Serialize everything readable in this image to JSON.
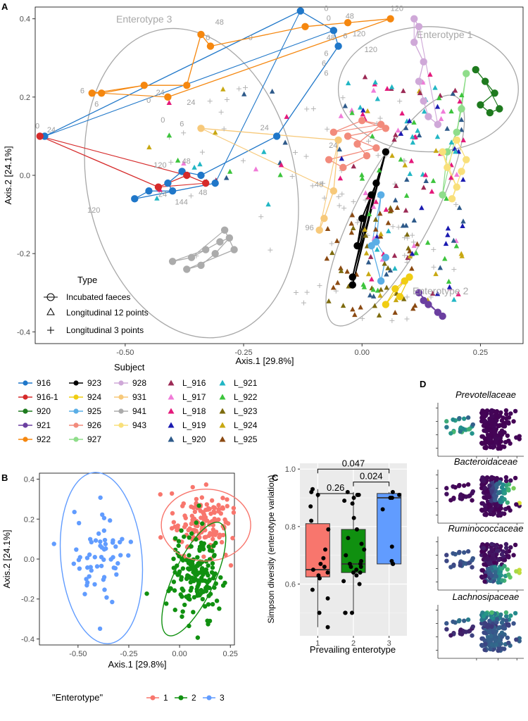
{
  "panels": {
    "A": "A",
    "B": "B",
    "C": "C",
    "D": "D"
  },
  "chart_data": [
    {
      "type": "scatter",
      "panel": "A",
      "xlabel": "Axis.1   [29.8%]",
      "ylabel": "Axis.2   [24.1%]",
      "xlim": [
        -0.69,
        0.34
      ],
      "ylim": [
        -0.43,
        0.43
      ],
      "xticks": [
        "-0.50",
        "-0.25",
        "0.00",
        "0.25"
      ],
      "xtick_values": [
        -0.5,
        -0.25,
        0.0,
        0.25
      ],
      "yticks": [
        "0.4",
        "0.2",
        "0.0",
        "-0.2",
        "-0.4"
      ],
      "ytick_values": [
        0.4,
        0.2,
        0.0,
        -0.2,
        -0.4
      ],
      "ellipse_labels": [
        "Enterotype 3",
        "Enterotype 1",
        "Enterotype 2"
      ],
      "ellipses": [
        {
          "name": "Enterotype 3",
          "cx": -0.36,
          "cy": -0.02,
          "rx": 0.22,
          "ry": 0.4,
          "angle": -12
        },
        {
          "name": "Enterotype 1",
          "cx": 0.14,
          "cy": 0.22,
          "rx": 0.19,
          "ry": 0.16,
          "angle": 0
        },
        {
          "name": "Enterotype 2",
          "cx": 0.07,
          "cy": -0.09,
          "rx": 0.08,
          "ry": 0.33,
          "angle": 28
        }
      ],
      "time_labels": [
        {
          "t": "0",
          "x": -0.08,
          "y": 0.42
        },
        {
          "t": "120",
          "x": 0.06,
          "y": 0.42
        },
        {
          "t": "48",
          "x": -0.31,
          "y": 0.385
        },
        {
          "t": "6",
          "x": -0.04,
          "y": 0.35
        },
        {
          "t": "0",
          "x": -0.33,
          "y": 0.345
        },
        {
          "t": "0",
          "x": -0.24,
          "y": 0.345
        },
        {
          "t": "48",
          "x": -0.035,
          "y": 0.4
        },
        {
          "t": "0",
          "x": -0.075,
          "y": 0.395
        },
        {
          "t": "120",
          "x": -0.02,
          "y": 0.355
        },
        {
          "t": "48",
          "x": -0.075,
          "y": 0.345
        },
        {
          "t": "6",
          "x": -0.08,
          "y": 0.305
        },
        {
          "t": "120",
          "x": 0.005,
          "y": 0.315
        },
        {
          "t": "6",
          "x": -0.085,
          "y": 0.28
        },
        {
          "t": "6",
          "x": -0.08,
          "y": 0.255
        },
        {
          "t": "6",
          "x": -0.595,
          "y": 0.21
        },
        {
          "t": "0",
          "x": -0.455,
          "y": 0.185
        },
        {
          "t": "24",
          "x": -0.435,
          "y": 0.205
        },
        {
          "t": "24",
          "x": -0.37,
          "y": 0.18
        },
        {
          "t": "6",
          "x": -0.565,
          "y": 0.175
        },
        {
          "t": "0",
          "x": -0.425,
          "y": 0.135
        },
        {
          "t": "6",
          "x": -0.385,
          "y": 0.125
        },
        {
          "t": "24",
          "x": -0.215,
          "y": 0.115
        },
        {
          "t": "0",
          "x": -0.69,
          "y": 0.12
        },
        {
          "t": "24",
          "x": -0.665,
          "y": 0.11
        },
        {
          "t": "24",
          "x": -0.07,
          "y": 0.07
        },
        {
          "t": "120",
          "x": -0.44,
          "y": 0.02
        },
        {
          "t": "48",
          "x": -0.38,
          "y": 0.03
        },
        {
          "t": "24",
          "x": -0.43,
          "y": -0.055
        },
        {
          "t": "144",
          "x": -0.395,
          "y": -0.075
        },
        {
          "t": "48",
          "x": -0.345,
          "y": -0.05
        },
        {
          "t": "120",
          "x": -0.58,
          "y": -0.095
        },
        {
          "t": "48",
          "x": -0.1,
          "y": -0.03
        },
        {
          "t": "96",
          "x": -0.12,
          "y": -0.14
        }
      ],
      "subjects": [
        {
          "name": "916",
          "color": "#1f77c9",
          "kind": "incubated"
        },
        {
          "name": "916-1",
          "color": "#d62a2a",
          "kind": "incubated"
        },
        {
          "name": "920",
          "color": "#1e7a1e",
          "kind": "incubated"
        },
        {
          "name": "921",
          "color": "#6b3fa0",
          "kind": "incubated"
        },
        {
          "name": "922",
          "color": "#f5870f",
          "kind": "incubated"
        },
        {
          "name": "923",
          "color": "#000000",
          "kind": "incubated"
        },
        {
          "name": "924",
          "color": "#f0cd12",
          "kind": "incubated"
        },
        {
          "name": "925",
          "color": "#5aaee6",
          "kind": "incubated"
        },
        {
          "name": "926",
          "color": "#f28b7c",
          "kind": "incubated"
        },
        {
          "name": "927",
          "color": "#8fdd8a",
          "kind": "incubated"
        },
        {
          "name": "928",
          "color": "#cfa8d8",
          "kind": "incubated"
        },
        {
          "name": "931",
          "color": "#f7c97a",
          "kind": "incubated"
        },
        {
          "name": "941",
          "color": "#ababab",
          "kind": "incubated"
        },
        {
          "name": "943",
          "color": "#f9e07a",
          "kind": "incubated"
        },
        {
          "name": "L_916",
          "color": "#9c2a55",
          "kind": "longitudinal"
        },
        {
          "name": "L_917",
          "color": "#f07bd8",
          "kind": "longitudinal"
        },
        {
          "name": "L_918",
          "color": "#e4197b",
          "kind": "longitudinal"
        },
        {
          "name": "L_919",
          "color": "#1a1ab0",
          "kind": "longitudinal"
        },
        {
          "name": "L_920",
          "color": "#2e5a8a",
          "kind": "longitudinal"
        },
        {
          "name": "L_921",
          "color": "#21b6c4",
          "kind": "longitudinal"
        },
        {
          "name": "L_922",
          "color": "#3cc43c",
          "kind": "longitudinal"
        },
        {
          "name": "L_923",
          "color": "#7d6b0e",
          "kind": "longitudinal"
        },
        {
          "name": "L_924",
          "color": "#c8a812",
          "kind": "longitudinal"
        },
        {
          "name": "L_925",
          "color": "#8b4a12",
          "kind": "longitudinal"
        }
      ],
      "series": [
        {
          "name": "916",
          "points": [
            [
              -0.67,
              0.1
            ],
            [
              -0.13,
              0.42
            ],
            [
              -0.06,
              0.37
            ],
            [
              -0.05,
              0.33
            ],
            [
              -0.18,
              0.1
            ],
            [
              -0.34,
              -0.0
            ],
            [
              -0.38,
              0.01
            ],
            [
              -0.41,
              -0.02
            ],
            [
              -0.4,
              -0.04
            ],
            [
              -0.45,
              -0.04
            ],
            [
              -0.48,
              -0.06
            ],
            [
              -0.31,
              -0.02
            ]
          ]
        },
        {
          "name": "916-1",
          "points": [
            [
              -0.68,
              0.1
            ],
            [
              -0.43,
              -0.03
            ],
            [
              -0.37,
              0.0
            ],
            [
              -0.33,
              -0.02
            ]
          ]
        },
        {
          "name": "920",
          "points": [
            [
              0.24,
              0.27
            ],
            [
              0.26,
              0.24
            ],
            [
              0.28,
              0.21
            ],
            [
              0.25,
              0.18
            ],
            [
              0.27,
              0.16
            ],
            [
              0.29,
              0.17
            ]
          ]
        },
        {
          "name": "921",
          "points": [
            [
              0.12,
              -0.3
            ],
            [
              0.14,
              -0.33
            ],
            [
              0.16,
              -0.35
            ],
            [
              0.17,
              -0.36
            ],
            [
              0.13,
              -0.32
            ]
          ]
        },
        {
          "name": "922",
          "points": [
            [
              -0.57,
              0.21
            ],
            [
              -0.55,
              0.21
            ],
            [
              -0.46,
              0.23
            ],
            [
              -0.37,
              0.23
            ],
            [
              -0.34,
              0.36
            ],
            [
              -0.32,
              0.33
            ],
            [
              -0.12,
              0.38
            ],
            [
              -0.03,
              0.39
            ],
            [
              0.06,
              0.4
            ],
            [
              -0.41,
              0.2
            ]
          ]
        },
        {
          "name": "923",
          "points": [
            [
              -0.02,
              -0.28
            ],
            [
              0.05,
              0.06
            ],
            [
              0.03,
              -0.02
            ],
            [
              0.0,
              -0.11
            ],
            [
              -0.01,
              -0.18
            ],
            [
              0.02,
              -0.05
            ],
            [
              -0.02,
              -0.26
            ]
          ]
        },
        {
          "name": "924",
          "points": [
            [
              0.05,
              -0.33
            ],
            [
              0.07,
              -0.29
            ],
            [
              0.09,
              -0.27
            ],
            [
              0.1,
              -0.26
            ],
            [
              0.08,
              -0.31
            ]
          ]
        },
        {
          "name": "925",
          "points": [
            [
              0.04,
              -0.05
            ],
            [
              0.03,
              -0.17
            ],
            [
              0.02,
              -0.18
            ],
            [
              0.04,
              -0.27
            ],
            [
              0.05,
              -0.21
            ]
          ]
        },
        {
          "name": "926",
          "points": [
            [
              -0.06,
              0.11
            ],
            [
              0.0,
              0.14
            ],
            [
              0.04,
              0.13
            ],
            [
              -0.01,
              0.08
            ],
            [
              0.01,
              0.05
            ],
            [
              -0.04,
              0.02
            ],
            [
              -0.07,
              0.04
            ],
            [
              0.03,
              0.07
            ],
            [
              -0.03,
              0.1
            ],
            [
              0.05,
              0.12
            ]
          ]
        },
        {
          "name": "927",
          "points": [
            [
              0.22,
              0.26
            ],
            [
              0.21,
              0.17
            ],
            [
              0.2,
              0.11
            ],
            [
              0.18,
              0.06
            ],
            [
              0.17,
              -0.05
            ]
          ]
        },
        {
          "name": "928",
          "points": [
            [
              0.11,
              0.4
            ],
            [
              0.12,
              0.38
            ],
            [
              0.11,
              0.34
            ],
            [
              0.13,
              0.29
            ],
            [
              0.12,
              0.24
            ],
            [
              0.13,
              0.19
            ],
            [
              0.14,
              0.15
            ],
            [
              0.16,
              0.13
            ]
          ]
        },
        {
          "name": "931",
          "points": [
            [
              -0.34,
              0.12
            ],
            [
              -0.05,
              0.09
            ],
            [
              -0.06,
              -0.04
            ],
            [
              -0.08,
              -0.11
            ],
            [
              -0.09,
              -0.14
            ]
          ]
        },
        {
          "name": "941",
          "points": [
            [
              -0.4,
              -0.22
            ],
            [
              -0.36,
              -0.21
            ],
            [
              -0.33,
              -0.19
            ],
            [
              -0.3,
              -0.17
            ],
            [
              -0.28,
              -0.16
            ],
            [
              -0.31,
              -0.2
            ],
            [
              -0.34,
              -0.23
            ],
            [
              -0.37,
              -0.24
            ],
            [
              -0.27,
              -0.19
            ],
            [
              -0.29,
              -0.14
            ]
          ]
        },
        {
          "name": "943",
          "points": [
            [
              0.17,
              0.06
            ],
            [
              0.18,
              0.02
            ],
            [
              0.2,
              -0.03
            ],
            [
              0.19,
              -0.06
            ],
            [
              0.21,
              0.01
            ],
            [
              0.22,
              0.04
            ],
            [
              0.2,
              0.09
            ]
          ]
        }
      ],
      "legend_type_title": "Type",
      "legend_types": [
        "Incubated faeces",
        "Longitudinal 12 points",
        "Longitudinal 3 points"
      ],
      "legend_subject_title": "Subject"
    },
    {
      "type": "scatter",
      "panel": "B",
      "xlabel": "Axis.1   [29.8%]",
      "ylabel": "Axis.2   [24.1%]",
      "xlim": [
        -0.69,
        0.27
      ],
      "ylim": [
        -0.43,
        0.43
      ],
      "xticks": [
        "-0.50",
        "-0.25",
        "0.00",
        "0.25"
      ],
      "xtick_values": [
        -0.5,
        -0.25,
        0.0,
        0.25
      ],
      "yticks": [
        "0.4",
        "0.2",
        "0.0",
        "-0.2",
        "-0.4"
      ],
      "ytick_values": [
        0.4,
        0.2,
        0.0,
        -0.2,
        -0.4
      ],
      "legend_title": "\"Enterotype\"",
      "groups": [
        {
          "name": "1",
          "color": "#f8766d",
          "n": 150,
          "cx": 0.11,
          "cy": 0.18,
          "sx": 0.08,
          "sy": 0.08
        },
        {
          "name": "2",
          "color": "#109010",
          "n": 170,
          "cx": 0.08,
          "cy": -0.08,
          "sx": 0.06,
          "sy": 0.11
        },
        {
          "name": "3",
          "color": "#619cff",
          "n": 60,
          "cx": -0.39,
          "cy": 0.03,
          "sx": 0.08,
          "sy": 0.13
        }
      ],
      "ellipses": [
        {
          "name": "3",
          "cx": -0.385,
          "cy": 0.005,
          "rx": 0.2,
          "ry": 0.43,
          "angle": -5
        },
        {
          "name": "1",
          "cx": 0.13,
          "cy": 0.17,
          "rx": 0.22,
          "ry": 0.18,
          "angle": 0
        },
        {
          "name": "2",
          "cx": 0.07,
          "cy": -0.1,
          "rx": 0.1,
          "ry": 0.31,
          "angle": 25
        }
      ]
    },
    {
      "type": "box",
      "panel": "C",
      "xlabel": "Prevailing enterotype",
      "ylabel": "Simpson diversity (enterotype variation)",
      "ylim": [
        0.42,
        1.02
      ],
      "yticks": [
        "1.0",
        "0.8",
        "0.6"
      ],
      "ytick_values": [
        1.0,
        0.8,
        0.6
      ],
      "categories": [
        "1",
        "2",
        "3"
      ],
      "boxes": [
        {
          "name": "1",
          "color": "#f8766d",
          "q1": 0.625,
          "median": 0.65,
          "q3": 0.81,
          "whisker_low": 0.45,
          "whisker_high": 0.93,
          "points": [
            0.93,
            0.92,
            0.91,
            0.87,
            0.82,
            0.79,
            0.72,
            0.69,
            0.67,
            0.66,
            0.65,
            0.64,
            0.63,
            0.62,
            0.58,
            0.55,
            0.5,
            0.45
          ]
        },
        {
          "name": "2",
          "color": "#109010",
          "q1": 0.64,
          "median": 0.67,
          "q3": 0.79,
          "whisker_low": 0.5,
          "whisker_high": 0.92,
          "points": [
            0.92,
            0.91,
            0.91,
            0.9,
            0.89,
            0.88,
            0.83,
            0.79,
            0.76,
            0.74,
            0.72,
            0.7,
            0.68,
            0.67,
            0.67,
            0.66,
            0.66,
            0.65,
            0.64,
            0.64,
            0.63,
            0.61,
            0.6,
            0.5,
            0.5,
            0.5
          ]
        },
        {
          "name": "3",
          "color": "#619cff",
          "q1": 0.67,
          "median": 0.9,
          "q3": 0.915,
          "whisker_low": 0.67,
          "whisker_high": 0.92,
          "points": [
            0.92,
            0.91,
            0.9,
            0.9,
            0.86,
            0.73,
            0.68,
            0.67,
            0.67
          ]
        }
      ],
      "comparisons": [
        {
          "from": "1",
          "to": "2",
          "label": "0.26"
        },
        {
          "from": "1",
          "to": "3",
          "label": "0.047"
        },
        {
          "from": "2",
          "to": "3",
          "label": "0.024"
        }
      ]
    },
    {
      "type": "scatter",
      "panel": "D",
      "facets": [
        "Prevotellaceae",
        "Bacteroidaceae",
        "Ruminococcaceae",
        "Lachnosipaceae"
      ],
      "colormap": [
        "#440154",
        "#3b528b",
        "#21918c",
        "#5ec962",
        "#fde725"
      ]
    }
  ]
}
